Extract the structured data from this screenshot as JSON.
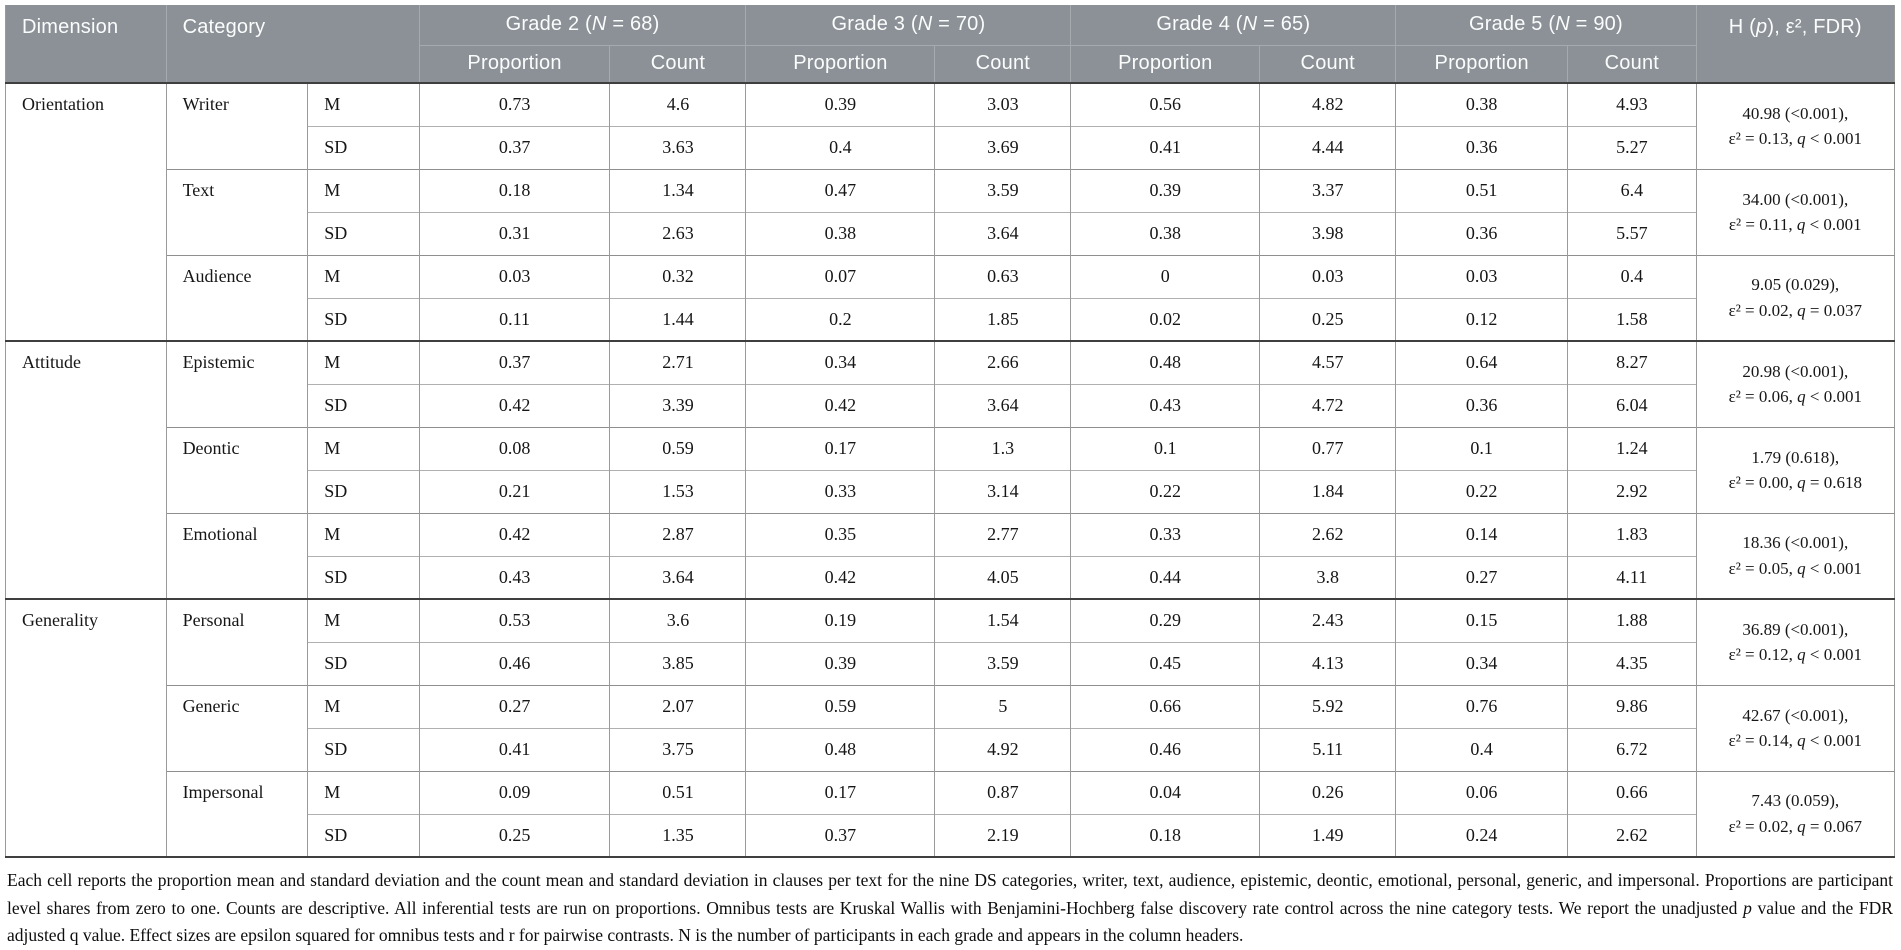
{
  "table": {
    "header": {
      "dimension": "Dimension",
      "category": "Category",
      "proportion": "Proportion",
      "count": "Count",
      "grades": [
        {
          "parts": [
            {
              "t": "Grade 2 ("
            },
            {
              "t": "N",
              "i": true
            },
            {
              "t": " = 68)"
            }
          ]
        },
        {
          "parts": [
            {
              "t": "Grade 3 ("
            },
            {
              "t": "N",
              "i": true
            },
            {
              "t": " = 70)"
            }
          ]
        },
        {
          "parts": [
            {
              "t": "Grade 4 ("
            },
            {
              "t": "N",
              "i": true
            },
            {
              "t": " = 65)"
            }
          ]
        },
        {
          "parts": [
            {
              "t": "Grade 5 ("
            },
            {
              "t": "N",
              "i": true
            },
            {
              "t": " = 90)"
            }
          ]
        }
      ],
      "stats": {
        "parts": [
          {
            "t": "H ("
          },
          {
            "t": "p",
            "i": true
          },
          {
            "t": "), ε², FDR)"
          }
        ]
      }
    },
    "row_labels": {
      "mean": "M",
      "sd": "SD"
    },
    "groups": [
      {
        "dimension": "Orientation",
        "categories": [
          {
            "name": "Writer",
            "m": [
              "0.73",
              "4.6",
              "0.39",
              "3.03",
              "0.56",
              "4.82",
              "0.38",
              "4.93"
            ],
            "sd": [
              "0.37",
              "3.63",
              "0.4",
              "3.69",
              "0.41",
              "4.44",
              "0.36",
              "5.27"
            ],
            "stat_line1": "40.98 (<0.001),",
            "stat_line2": [
              {
                "t": "ε² = 0.13, "
              },
              {
                "t": "q",
                "i": true
              },
              {
                "t": " < 0.001"
              }
            ]
          },
          {
            "name": "Text",
            "m": [
              "0.18",
              "1.34",
              "0.47",
              "3.59",
              "0.39",
              "3.37",
              "0.51",
              "6.4"
            ],
            "sd": [
              "0.31",
              "2.63",
              "0.38",
              "3.64",
              "0.38",
              "3.98",
              "0.36",
              "5.57"
            ],
            "stat_line1": "34.00 (<0.001),",
            "stat_line2": [
              {
                "t": "ε² = 0.11, "
              },
              {
                "t": "q",
                "i": true
              },
              {
                "t": " < 0.001"
              }
            ]
          },
          {
            "name": "Audience",
            "m": [
              "0.03",
              "0.32",
              "0.07",
              "0.63",
              "0",
              "0.03",
              "0.03",
              "0.4"
            ],
            "sd": [
              "0.11",
              "1.44",
              "0.2",
              "1.85",
              "0.02",
              "0.25",
              "0.12",
              "1.58"
            ],
            "stat_line1": "9.05 (0.029),",
            "stat_line2": [
              {
                "t": "ε² = 0.02, "
              },
              {
                "t": "q",
                "i": true
              },
              {
                "t": " = 0.037"
              }
            ]
          }
        ]
      },
      {
        "dimension": "Attitude",
        "categories": [
          {
            "name": "Epistemic",
            "m": [
              "0.37",
              "2.71",
              "0.34",
              "2.66",
              "0.48",
              "4.57",
              "0.64",
              "8.27"
            ],
            "sd": [
              "0.42",
              "3.39",
              "0.42",
              "3.64",
              "0.43",
              "4.72",
              "0.36",
              "6.04"
            ],
            "stat_line1": "20.98 (<0.001),",
            "stat_line2": [
              {
                "t": "ε² = 0.06, "
              },
              {
                "t": "q",
                "i": true
              },
              {
                "t": " < 0.001"
              }
            ]
          },
          {
            "name": "Deontic",
            "m": [
              "0.08",
              "0.59",
              "0.17",
              "1.3",
              "0.1",
              "0.77",
              "0.1",
              "1.24"
            ],
            "sd": [
              "0.21",
              "1.53",
              "0.33",
              "3.14",
              "0.22",
              "1.84",
              "0.22",
              "2.92"
            ],
            "stat_line1": "1.79 (0.618),",
            "stat_line2": [
              {
                "t": "ε² = 0.00, "
              },
              {
                "t": "q",
                "i": true
              },
              {
                "t": " = 0.618"
              }
            ]
          },
          {
            "name": "Emotional",
            "m": [
              "0.42",
              "2.87",
              "0.35",
              "2.77",
              "0.33",
              "2.62",
              "0.14",
              "1.83"
            ],
            "sd": [
              "0.43",
              "3.64",
              "0.42",
              "4.05",
              "0.44",
              "3.8",
              "0.27",
              "4.11"
            ],
            "stat_line1": "18.36 (<0.001),",
            "stat_line2": [
              {
                "t": "ε² = 0.05, "
              },
              {
                "t": "q",
                "i": true
              },
              {
                "t": " < 0.001"
              }
            ]
          }
        ]
      },
      {
        "dimension": "Generality",
        "categories": [
          {
            "name": "Personal",
            "m": [
              "0.53",
              "3.6",
              "0.19",
              "1.54",
              "0.29",
              "2.43",
              "0.15",
              "1.88"
            ],
            "sd": [
              "0.46",
              "3.85",
              "0.39",
              "3.59",
              "0.45",
              "4.13",
              "0.34",
              "4.35"
            ],
            "stat_line1": "36.89 (<0.001),",
            "stat_line2": [
              {
                "t": "ε² = 0.12, "
              },
              {
                "t": "q",
                "i": true
              },
              {
                "t": " < 0.001"
              }
            ]
          },
          {
            "name": "Generic",
            "m": [
              "0.27",
              "2.07",
              "0.59",
              "5",
              "0.66",
              "5.92",
              "0.76",
              "9.86"
            ],
            "sd": [
              "0.41",
              "3.75",
              "0.48",
              "4.92",
              "0.46",
              "5.11",
              "0.4",
              "6.72"
            ],
            "stat_line1": "42.67 (<0.001),",
            "stat_line2": [
              {
                "t": "ε² = 0.14, "
              },
              {
                "t": "q",
                "i": true
              },
              {
                "t": " < 0.001"
              }
            ]
          },
          {
            "name": "Impersonal",
            "m": [
              "0.09",
              "0.51",
              "0.17",
              "0.87",
              "0.04",
              "0.26",
              "0.06",
              "0.66"
            ],
            "sd": [
              "0.25",
              "1.35",
              "0.37",
              "2.19",
              "0.18",
              "1.49",
              "0.24",
              "2.62"
            ],
            "stat_line1": "7.43 (0.059),",
            "stat_line2": [
              {
                "t": "ε² = 0.02, "
              },
              {
                "t": "q",
                "i": true
              },
              {
                "t": " = 0.067"
              }
            ]
          }
        ]
      }
    ]
  },
  "footnote": {
    "parts": [
      {
        "t": "Each cell reports the proportion mean and standard deviation and the count mean and standard deviation in clauses per text for the nine DS categories, writer, text, audience, epistemic, deontic, emotional, personal, generic, and impersonal. Proportions are participant level shares from zero to one. Counts are descriptive. All inferential tests are run on proportions. Omnibus tests are Kruskal Wallis with Benjamini-Hochberg false discovery rate control across the nine category tests. We report the unadjusted "
      },
      {
        "t": "p",
        "i": true
      },
      {
        "t": " value and the FDR adjusted q value. Effect sizes are epsilon squared for omnibus tests and r for pairwise contrasts. N is the number of participants in each grade and appears in the column headers."
      }
    ]
  }
}
